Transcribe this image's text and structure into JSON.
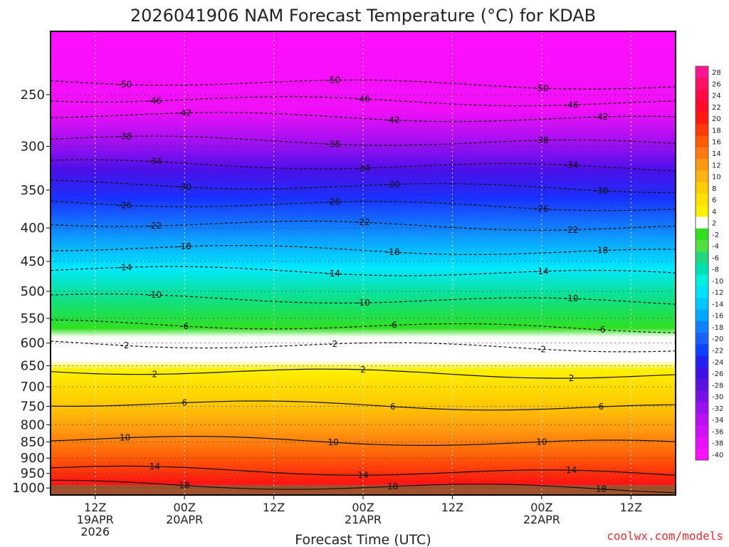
{
  "chart_data": {
    "type": "heatmap",
    "title": "2026041906 NAM Forecast Temperature (°C) for KDAB",
    "xlabel": "Forecast Time (UTC)",
    "ylabel": "",
    "credit": "coolwx.com/models",
    "x_ticks": [
      {
        "hours": 6,
        "lines": [
          "12Z",
          "19APR",
          "2026"
        ]
      },
      {
        "hours": 18,
        "lines": [
          "00Z",
          "20APR"
        ]
      },
      {
        "hours": 30,
        "lines": [
          "12Z"
        ]
      },
      {
        "hours": 42,
        "lines": [
          "00Z",
          "21APR"
        ]
      },
      {
        "hours": 54,
        "lines": [
          "12Z"
        ]
      },
      {
        "hours": 66,
        "lines": [
          "00Z",
          "22APR"
        ]
      },
      {
        "hours": 78,
        "lines": [
          "12Z"
        ]
      }
    ],
    "xlim_hours": [
      0,
      84
    ],
    "y_ticks": [
      "250",
      "300",
      "350",
      "400",
      "450",
      "500",
      "550",
      "600",
      "650",
      "700",
      "750",
      "800",
      "850",
      "900",
      "950",
      "1000"
    ],
    "ylim_hpa": [
      200,
      1025
    ],
    "colorbar": {
      "labels": [
        "28",
        "26",
        "24",
        "22",
        "20",
        "18",
        "16",
        "14",
        "12",
        "10",
        "8",
        "6",
        "4",
        "2",
        "-2",
        "-4",
        "-6",
        "-8",
        "-10",
        "-12",
        "-14",
        "-16",
        "-18",
        "-20",
        "-22",
        "-24",
        "-26",
        "-28",
        "-30",
        "-32",
        "-34",
        "-36",
        "-38",
        "-40"
      ],
      "colors": [
        "#ff1493",
        "#ff1166",
        "#ff0a44",
        "#ff0a28",
        "#ff1a10",
        "#ff3a08",
        "#ff5a08",
        "#ff7a10",
        "#ff9a10",
        "#ffb410",
        "#ffcc00",
        "#ffe000",
        "#fff000",
        "#ffffff",
        "#30e020",
        "#50e040",
        "#20d880",
        "#00e0b0",
        "#00f0e0",
        "#00e0ff",
        "#00c8ff",
        "#00a8ff",
        "#1080ff",
        "#1860ff",
        "#1040ff",
        "#2020f0",
        "#4010e8",
        "#5a10e0",
        "#7a10e8",
        "#9a10f0",
        "#b810f0",
        "#d010f8",
        "#e810f8",
        "#ff10ff"
      ]
    },
    "contour_levels_labeled": [
      {
        "level": "-50",
        "hpa": 238
      },
      {
        "level": "-46",
        "hpa": 253
      },
      {
        "level": "-42",
        "hpa": 268
      },
      {
        "level": "-38",
        "hpa": 292
      },
      {
        "level": "-34",
        "hpa": 318
      },
      {
        "level": "-30",
        "hpa": 342
      },
      {
        "level": "-26",
        "hpa": 365
      },
      {
        "level": "-22",
        "hpa": 392
      },
      {
        "level": "-18",
        "hpa": 428
      },
      {
        "level": "-14",
        "hpa": 462
      },
      {
        "level": "-10",
        "hpa": 510
      },
      {
        "level": "-6",
        "hpa": 560
      },
      {
        "level": "-2",
        "hpa": 600
      },
      {
        "level": "2",
        "hpa": 660
      },
      {
        "level": "6",
        "hpa": 740
      },
      {
        "level": "10",
        "hpa": 840
      },
      {
        "level": "14",
        "hpa": 935
      },
      {
        "level": "18",
        "hpa": 985
      }
    ]
  }
}
